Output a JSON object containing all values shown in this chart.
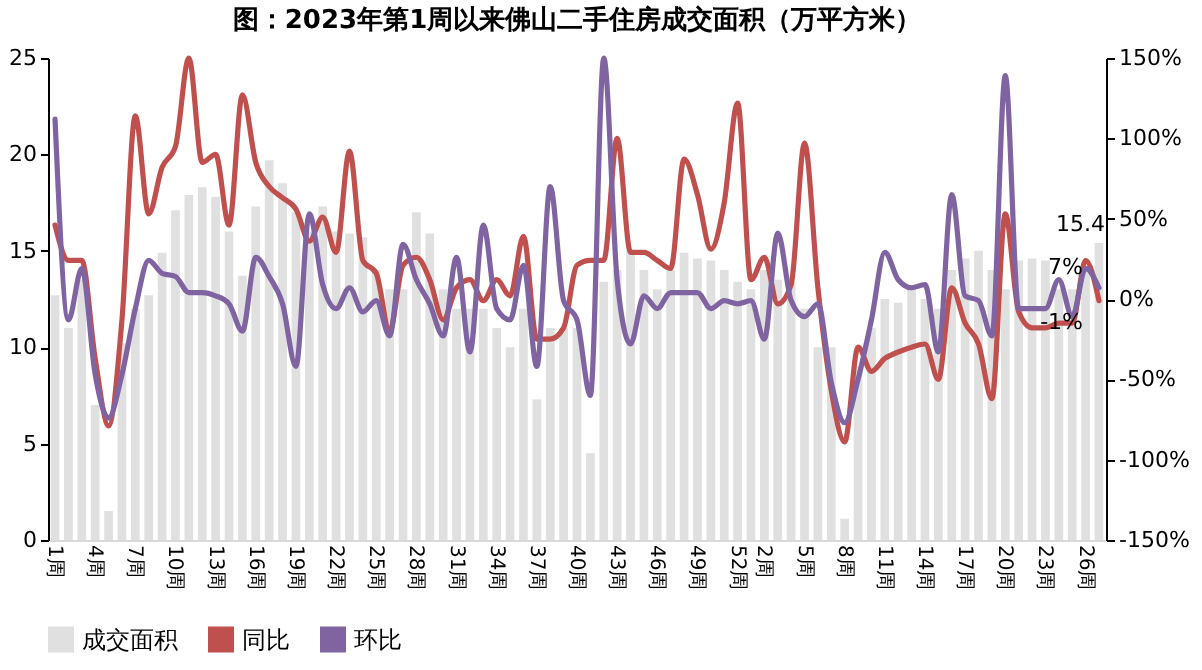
{
  "chart_data": {
    "type": "bar",
    "title": "图：2023年第1周以来佛山二手住房成交面积（万平方米）",
    "categories": [
      "1周",
      null,
      null,
      "4周",
      null,
      null,
      "7周",
      null,
      null,
      "10周",
      null,
      null,
      "13周",
      null,
      null,
      "16周",
      null,
      null,
      "19周",
      null,
      null,
      "22周",
      null,
      null,
      "25周",
      null,
      null,
      "28周",
      null,
      null,
      "31周",
      null,
      null,
      "34周",
      null,
      null,
      "37周",
      null,
      null,
      "40周",
      null,
      null,
      "43周",
      null,
      null,
      "46周",
      null,
      null,
      "49周",
      null,
      null,
      "52周",
      null,
      "2周",
      null,
      null,
      "5周",
      null,
      null,
      "8周",
      null,
      null,
      "11周",
      null,
      null,
      "14周",
      null,
      null,
      "17周",
      null,
      null,
      "20周",
      null,
      null,
      "23周",
      null,
      null,
      "26周",
      null
    ],
    "series": [
      {
        "name": "成交面积",
        "color": "#e0e0e0",
        "values": [
          12.7,
          11,
          13.5,
          7,
          1.5,
          10.2,
          12,
          12.7,
          14.9,
          17.1,
          17.9,
          18.3,
          17.8,
          16,
          13.7,
          17.3,
          19.7,
          18.5,
          17,
          16,
          17.3,
          16,
          15.9,
          15.7,
          14,
          13,
          13,
          17,
          15.9,
          13,
          12,
          12,
          12,
          11,
          10,
          12,
          7.3,
          11,
          11,
          11,
          4.5,
          13.4,
          14,
          15,
          14,
          13,
          14,
          14.9,
          14.6,
          14.5,
          14,
          13.4,
          13,
          14,
          13.5,
          13.4,
          12,
          10,
          10,
          1.1,
          9,
          11,
          12.5,
          12.3,
          13,
          12.5,
          12,
          14,
          14.6,
          15,
          14,
          13,
          14.5,
          14.6,
          14.5,
          13,
          13,
          14,
          15.4
        ],
        "value_labels": [
          null,
          null,
          null,
          null,
          null,
          null,
          null,
          null,
          null,
          null,
          null,
          null,
          null,
          null,
          null,
          null,
          null,
          null,
          null,
          null,
          null,
          null,
          null,
          null,
          null,
          null,
          null,
          null,
          null,
          null,
          null,
          null,
          null,
          null,
          null,
          null,
          null,
          null,
          null,
          null,
          null,
          null,
          null,
          null,
          null,
          null,
          null,
          null,
          null,
          null,
          null,
          null,
          null,
          null,
          null,
          null,
          null,
          null,
          null,
          null,
          null,
          null,
          null,
          null,
          null,
          null,
          null,
          null,
          null,
          null,
          null,
          null,
          null,
          null,
          null,
          null,
          null,
          null,
          "15.4"
        ]
      },
      {
        "name": "同比",
        "type": "line",
        "axis": "y2",
        "color": "#c0504d",
        "values": [
          46,
          24,
          24,
          -37,
          -79,
          -13,
          114,
          53,
          82,
          95,
          150,
          85,
          90,
          46,
          127,
          85,
          70,
          63,
          56,
          36,
          51,
          29,
          92,
          24,
          16,
          -20,
          21,
          26,
          12,
          -13,
          7,
          12,
          -1,
          12,
          2,
          39,
          -25,
          -25,
          -18,
          21,
          24,
          24,
          100,
          29,
          29,
          24,
          19,
          87,
          65,
          31,
          60,
          122,
          12,
          26,
          -3,
          9,
          97,
          7,
          -57,
          -89,
          -30,
          -45,
          -37,
          -33,
          -30,
          -28,
          -50,
          7,
          -15,
          -28,
          -62,
          53,
          -8,
          -18,
          -18,
          -15,
          -15,
          24,
          -1
        ],
        "value_labels": [
          null,
          null,
          null,
          null,
          null,
          null,
          null,
          null,
          null,
          null,
          null,
          null,
          null,
          null,
          null,
          null,
          null,
          null,
          null,
          null,
          null,
          null,
          null,
          null,
          null,
          null,
          null,
          null,
          null,
          null,
          null,
          null,
          null,
          null,
          null,
          null,
          null,
          null,
          null,
          null,
          null,
          null,
          null,
          null,
          null,
          null,
          null,
          null,
          null,
          null,
          null,
          null,
          null,
          null,
          null,
          null,
          null,
          null,
          null,
          null,
          null,
          null,
          null,
          null,
          null,
          null,
          null,
          null,
          null,
          null,
          null,
          null,
          null,
          null,
          null,
          null,
          null,
          null,
          "-1%"
        ]
      },
      {
        "name": "环比",
        "type": "line",
        "axis": "y2",
        "color": "#8064a2",
        "values": [
          112,
          -13,
          19,
          -47,
          -74,
          -47,
          -6,
          24,
          16,
          14,
          4,
          4,
          2,
          -3,
          -20,
          26,
          14,
          -3,
          -42,
          53,
          9,
          -6,
          7,
          -8,
          -1,
          -23,
          34,
          12,
          -3,
          -23,
          26,
          -33,
          46,
          -6,
          -13,
          21,
          -42,
          70,
          -1,
          -13,
          -60,
          150,
          12,
          -28,
          2,
          -6,
          4,
          4,
          4,
          -6,
          -1,
          -3,
          -1,
          -25,
          41,
          -1,
          -11,
          -3,
          -52,
          -77,
          -50,
          -13,
          29,
          12,
          7,
          9,
          -33,
          65,
          2,
          -1,
          -23,
          139,
          -6,
          -6,
          -6,
          12,
          -11,
          19,
          7
        ],
        "value_labels": [
          null,
          null,
          null,
          null,
          null,
          null,
          null,
          null,
          null,
          null,
          null,
          null,
          null,
          null,
          null,
          null,
          null,
          null,
          null,
          null,
          null,
          null,
          null,
          null,
          null,
          null,
          null,
          null,
          null,
          null,
          null,
          null,
          null,
          null,
          null,
          null,
          null,
          null,
          null,
          null,
          null,
          null,
          null,
          null,
          null,
          null,
          null,
          null,
          null,
          null,
          null,
          null,
          null,
          null,
          null,
          null,
          null,
          null,
          null,
          null,
          null,
          null,
          null,
          null,
          null,
          null,
          null,
          null,
          null,
          null,
          null,
          null,
          null,
          null,
          null,
          null,
          null,
          null,
          "7%"
        ]
      }
    ],
    "ylim": [
      0,
      25
    ],
    "yticks": [
      0,
      5,
      10,
      15,
      20,
      25
    ],
    "y2lim": [
      -150,
      150
    ],
    "y2ticks": [
      {
        "value": -150,
        "label": "-150%"
      },
      {
        "value": -100,
        "label": "-100%"
      },
      {
        "value": -50,
        "label": "-50%"
      },
      {
        "value": 0,
        "label": "0%"
      },
      {
        "value": 50,
        "label": "50%"
      },
      {
        "value": 100,
        "label": "100%"
      },
      {
        "value": 150,
        "label": "150%"
      }
    ],
    "legend": "bottom"
  }
}
